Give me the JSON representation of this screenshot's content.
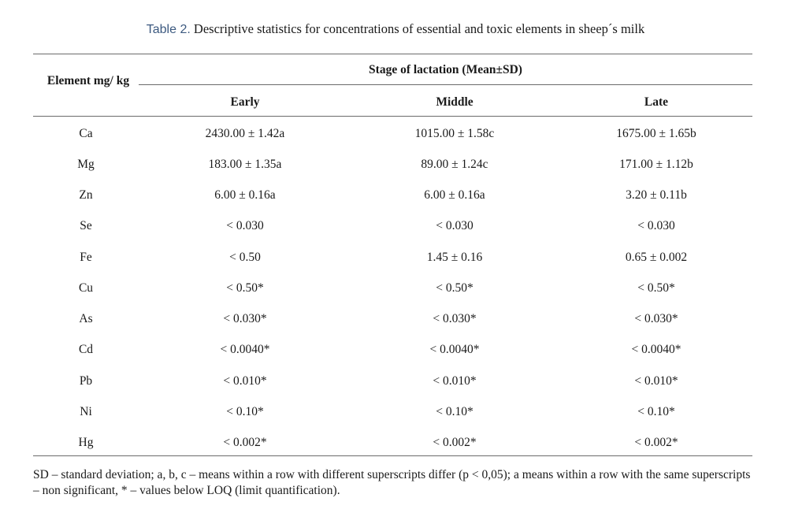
{
  "caption": {
    "label": "Table 2.",
    "text": "Descriptive statistics for concentrations of essential and toxic elements in sheep´s milk"
  },
  "headers": {
    "element": "Element mg/ kg",
    "group": "Stage of lactation (Mean±SD)",
    "early": "Early",
    "middle": "Middle",
    "late": "Late"
  },
  "rows": [
    {
      "element": "Ca",
      "early": "2430.00  ±  1.42a",
      "middle": "1015.00 ± 1.58c",
      "late": "1675.00 ± 1.65b"
    },
    {
      "element": "Mg",
      "early": "183.00 ± 1.35a",
      "middle": "89.00 ± 1.24c",
      "late": "171.00 ± 1.12b"
    },
    {
      "element": "Zn",
      "early": "6.00 ± 0.16a",
      "middle": "6.00 ± 0.16a",
      "late": "3.20 ± 0.11b"
    },
    {
      "element": "Se",
      "early": "< 0.030",
      "middle": "< 0.030",
      "late": "< 0.030"
    },
    {
      "element": "Fe",
      "early": "< 0.50",
      "middle": "1.45 ± 0.16",
      "late": "0.65 ± 0.002"
    },
    {
      "element": "Cu",
      "early": "< 0.50*",
      "middle": "< 0.50*",
      "late": "< 0.50*"
    },
    {
      "element": "As",
      "early": "< 0.030*",
      "middle": "< 0.030*",
      "late": "< 0.030*"
    },
    {
      "element": "Cd",
      "early": "< 0.0040*",
      "middle": "< 0.0040*",
      "late": "< 0.0040*"
    },
    {
      "element": "Pb",
      "early": "< 0.010*",
      "middle": "< 0.010*",
      "late": "< 0.010*"
    },
    {
      "element": "Ni",
      "early": "< 0.10*",
      "middle": "< 0.10*",
      "late": "< 0.10*"
    },
    {
      "element": "Hg",
      "early": "< 0.002*",
      "middle": "< 0.002*",
      "late": "< 0.002*"
    }
  ],
  "footnote": "SD – standard deviation; a, b, c – means within a row with different superscripts differ (p < 0,05); a means within a row with the same superscripts – non significant, * – values below LOQ (limit quantification).",
  "colors": {
    "caption_label": "#3d5a80",
    "text": "#1a1a1a",
    "rule": "#6b6b6b"
  }
}
